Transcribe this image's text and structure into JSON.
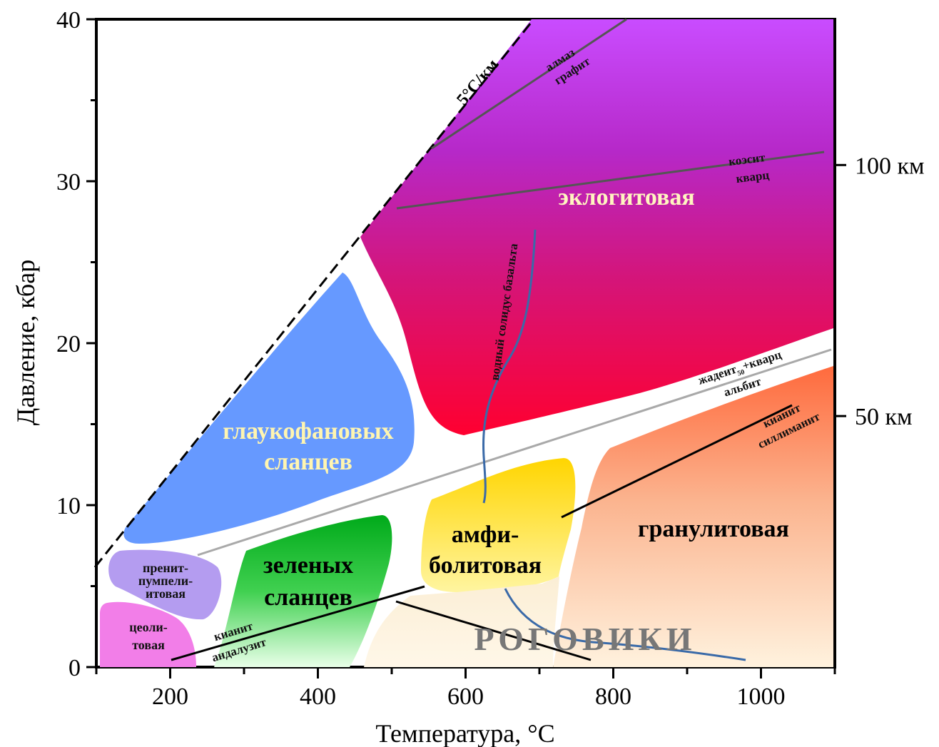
{
  "chart_data": {
    "type": "area",
    "title": "",
    "xlabel": "Температура, °C",
    "ylabel": "Давление, кбар",
    "xlim": [
      100,
      1100
    ],
    "ylim": [
      0,
      40
    ],
    "x_ticks": [
      "200",
      "400",
      "600",
      "800",
      "1000"
    ],
    "y_ticks": [
      "0",
      "10",
      "20",
      "30",
      "40"
    ],
    "depth_ticks": [
      {
        "pressure": 31,
        "label": "100 км"
      },
      {
        "pressure": 15.5,
        "label": "50 км"
      }
    ],
    "gradient_label": "5°C/км",
    "facies": {
      "eclogite": {
        "label": "эклогитовая",
        "color": "#b020c8"
      },
      "blueschist": {
        "lines": [
          "глаукофановых",
          "сланцев"
        ],
        "color": "#6699ff"
      },
      "greenschist": {
        "lines": [
          "зеленых",
          "сланцев"
        ],
        "color": "#00bb22"
      },
      "amphibolite": {
        "lines": [
          "амфи-",
          "болитовая"
        ],
        "color": "#ffdd00"
      },
      "granulite": {
        "label": "гранулитовая",
        "color": "#ff8855"
      },
      "hornfels": {
        "label": "РОГОВИКИ",
        "color": "#f5ecd0"
      },
      "prehnite": {
        "lines": [
          "пренит-",
          "пумпели-",
          "итовая"
        ],
        "color": "#b49cf0"
      },
      "zeolite": {
        "lines": [
          "цеоли-",
          "товая"
        ],
        "color": "#f27ee8"
      }
    },
    "reaction_lines": {
      "diamond_graphite": {
        "top": "алмаз",
        "bottom": "графит"
      },
      "coesite_quartz": {
        "top": "коэсит",
        "bottom": "кварц"
      },
      "jadeite_albite": {
        "top": "жадеит",
        "sub": "50",
        "top_suffix": "+кварц",
        "bottom": "альбит"
      },
      "kyanite_sillimanite": {
        "top": "кианит",
        "bottom": "силлиманит"
      },
      "kyanite_andalusite": {
        "top": "кианит",
        "bottom": "андалузит"
      },
      "wet_basalt_solidus": {
        "label": "водный солидус базальта"
      }
    }
  }
}
